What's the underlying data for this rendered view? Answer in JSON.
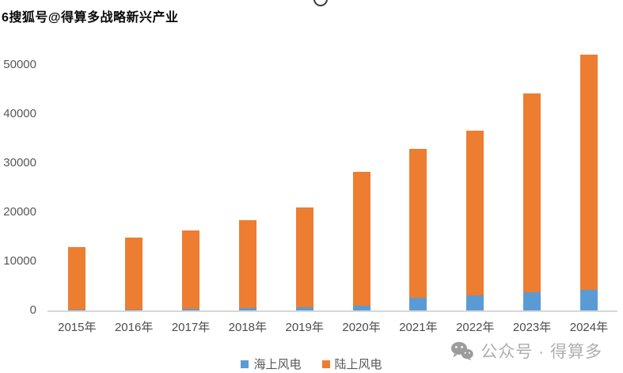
{
  "watermarks": {
    "top_text": "6搜狐号@得算多战略新兴产业",
    "bottom_text": "公众号 · 得算多",
    "bottom_icon": "wechat-icon"
  },
  "colors": {
    "offshore_blue": "#5B9BD5",
    "onshore_orange": "#ED7D31",
    "axis_line": "#D6D6D6",
    "tick_text": "#575757",
    "watermark_gray": "#AEAEAE"
  },
  "chart_data": {
    "type": "bar",
    "stacked": true,
    "title": "",
    "xlabel": "",
    "ylabel": "",
    "categories": [
      "2015年",
      "2016年",
      "2017年",
      "2018年",
      "2019年",
      "2020年",
      "2021年",
      "2022年",
      "2023年",
      "2024年"
    ],
    "series": [
      {
        "name": "海上风电",
        "color": "#5B9BD5",
        "stack_position": "bottom",
        "values": [
          100,
          160,
          280,
          440,
          590,
          900,
          2640,
          3050,
          3730,
          4130
        ]
      },
      {
        "name": "陆上风电",
        "color": "#ED7D31",
        "stack_position": "top",
        "values": [
          12730,
          14700,
          16090,
          17990,
          20410,
          27250,
          30210,
          33490,
          40400,
          47940
        ]
      }
    ],
    "stack_totals": [
      12830,
      14860,
      16370,
      18430,
      21000,
      28150,
      32850,
      36540,
      44130,
      52070
    ],
    "ylim": [
      0,
      50000
    ],
    "yticks": [
      0,
      10000,
      20000,
      30000,
      40000,
      50000
    ],
    "gridlines": false,
    "legend_position": "bottom"
  }
}
